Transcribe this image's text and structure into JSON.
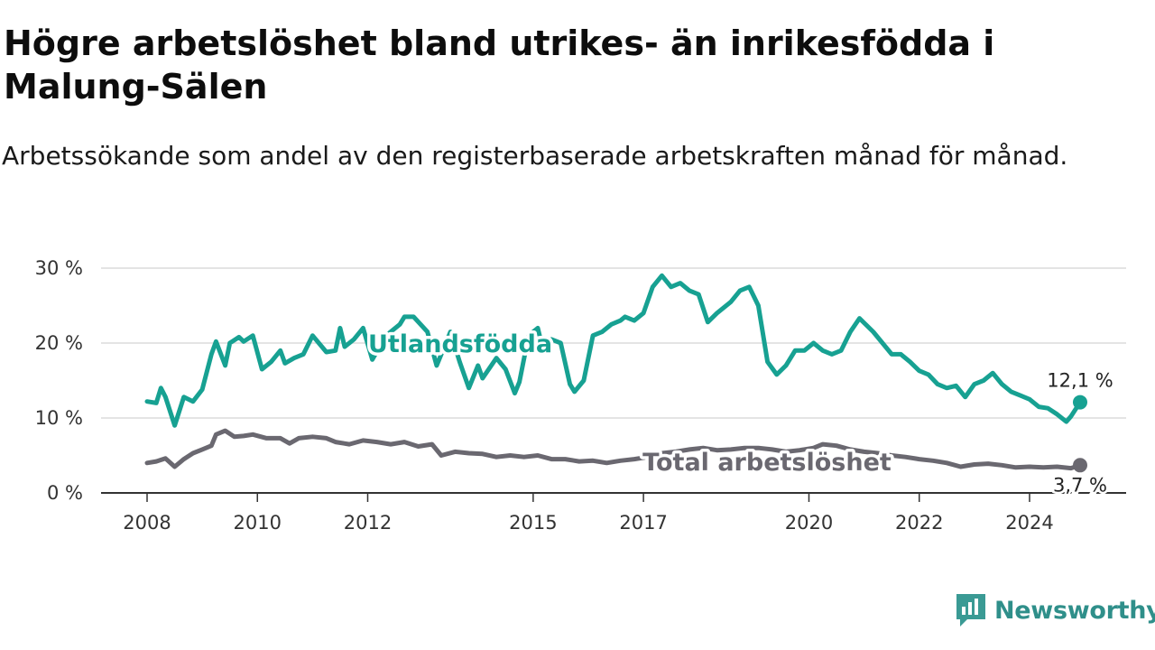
{
  "header": {
    "title": "Högre arbetslöshet bland utrikes- än inrikesfödda i Malung-Sälen",
    "subtitle": "Arbetssökande som andel av den registerbaserade arbetskraften månad för månad."
  },
  "brand": {
    "name": "Newsworthy",
    "icon": "newsworthy-logo-icon",
    "color": "#3a9a94"
  },
  "chart_data": {
    "type": "line",
    "title": "Högre arbetslöshet bland utrikes- än inrikesfödda i Malung-Sälen",
    "subtitle": "Arbetssökande som andel av den registerbaserade arbetskraften månad för månad.",
    "xlabel": "",
    "ylabel": "",
    "xlim": [
      "2008-01",
      "2024-12"
    ],
    "ylim": [
      0,
      30
    ],
    "y_ticks": [
      0,
      10,
      20,
      30
    ],
    "y_tick_labels": [
      "0 %",
      "10 %",
      "20 %",
      "30 %"
    ],
    "x_ticks": [
      "2008-01",
      "2010-01",
      "2012-01",
      "2015-01",
      "2017-01",
      "2020-01",
      "2022-01",
      "2024-01"
    ],
    "x_tick_labels": [
      "2008",
      "2010",
      "2012",
      "2015",
      "2017",
      "2020",
      "2022",
      "2024"
    ],
    "grid": true,
    "legend": "inline",
    "series": [
      {
        "name": "Utlandsfödda",
        "color": "#17a192",
        "end_label": "12,1 %",
        "points": [
          [
            "2008-01",
            12.2
          ],
          [
            "2008-03",
            12.0
          ],
          [
            "2008-04",
            14.0
          ],
          [
            "2008-05",
            12.8
          ],
          [
            "2008-07",
            9.0
          ],
          [
            "2008-09",
            12.8
          ],
          [
            "2008-11",
            12.2
          ],
          [
            "2009-01",
            13.8
          ],
          [
            "2009-03",
            18.5
          ],
          [
            "2009-04",
            20.2
          ],
          [
            "2009-06",
            17.0
          ],
          [
            "2009-07",
            20.0
          ],
          [
            "2009-09",
            20.8
          ],
          [
            "2009-10",
            20.2
          ],
          [
            "2009-12",
            21.0
          ],
          [
            "2010-02",
            16.5
          ],
          [
            "2010-04",
            17.5
          ],
          [
            "2010-06",
            19.0
          ],
          [
            "2010-07",
            17.3
          ],
          [
            "2010-09",
            18.0
          ],
          [
            "2010-11",
            18.5
          ],
          [
            "2011-01",
            21.0
          ],
          [
            "2011-04",
            18.8
          ],
          [
            "2011-06",
            19.0
          ],
          [
            "2011-07",
            22.0
          ],
          [
            "2011-08",
            19.5
          ],
          [
            "2011-10",
            20.5
          ],
          [
            "2011-12",
            22.0
          ],
          [
            "2012-02",
            17.8
          ],
          [
            "2012-05",
            21.0
          ],
          [
            "2012-08",
            22.5
          ],
          [
            "2012-09",
            23.5
          ],
          [
            "2012-11",
            23.5
          ],
          [
            "2013-02",
            21.5
          ],
          [
            "2013-04",
            17.0
          ],
          [
            "2013-07",
            21.5
          ],
          [
            "2013-09",
            17.5
          ],
          [
            "2013-11",
            14.0
          ],
          [
            "2014-01",
            17.0
          ],
          [
            "2014-02",
            15.3
          ],
          [
            "2014-05",
            18.0
          ],
          [
            "2014-07",
            16.5
          ],
          [
            "2014-09",
            13.3
          ],
          [
            "2014-10",
            14.8
          ],
          [
            "2014-12",
            21.0
          ],
          [
            "2015-02",
            22.0
          ],
          [
            "2015-03",
            19.5
          ],
          [
            "2015-05",
            20.5
          ],
          [
            "2015-07",
            20.0
          ],
          [
            "2015-09",
            14.5
          ],
          [
            "2015-10",
            13.5
          ],
          [
            "2015-12",
            15.0
          ],
          [
            "2016-02",
            21.0
          ],
          [
            "2016-04",
            21.5
          ],
          [
            "2016-06",
            22.5
          ],
          [
            "2016-08",
            23.0
          ],
          [
            "2016-09",
            23.5
          ],
          [
            "2016-11",
            23.0
          ],
          [
            "2017-01",
            24.0
          ],
          [
            "2017-03",
            27.5
          ],
          [
            "2017-05",
            29.0
          ],
          [
            "2017-07",
            27.5
          ],
          [
            "2017-09",
            28.0
          ],
          [
            "2017-11",
            27.0
          ],
          [
            "2018-01",
            26.5
          ],
          [
            "2018-03",
            22.8
          ],
          [
            "2018-05",
            24.0
          ],
          [
            "2018-08",
            25.5
          ],
          [
            "2018-10",
            27.0
          ],
          [
            "2018-12",
            27.5
          ],
          [
            "2019-02",
            25.0
          ],
          [
            "2019-04",
            17.5
          ],
          [
            "2019-06",
            15.8
          ],
          [
            "2019-08",
            17.0
          ],
          [
            "2019-10",
            19.0
          ],
          [
            "2019-12",
            19.0
          ],
          [
            "2020-02",
            20.0
          ],
          [
            "2020-04",
            19.0
          ],
          [
            "2020-06",
            18.5
          ],
          [
            "2020-08",
            19.0
          ],
          [
            "2020-10",
            21.5
          ],
          [
            "2020-12",
            23.3
          ],
          [
            "2021-03",
            21.5
          ],
          [
            "2021-05",
            20.0
          ],
          [
            "2021-07",
            18.5
          ],
          [
            "2021-09",
            18.5
          ],
          [
            "2021-11",
            17.5
          ],
          [
            "2022-01",
            16.3
          ],
          [
            "2022-03",
            15.8
          ],
          [
            "2022-05",
            14.5
          ],
          [
            "2022-07",
            14.0
          ],
          [
            "2022-09",
            14.3
          ],
          [
            "2022-11",
            12.8
          ],
          [
            "2023-01",
            14.5
          ],
          [
            "2023-03",
            15.0
          ],
          [
            "2023-05",
            16.0
          ],
          [
            "2023-07",
            14.5
          ],
          [
            "2023-09",
            13.5
          ],
          [
            "2023-11",
            13.0
          ],
          [
            "2024-01",
            12.5
          ],
          [
            "2024-03",
            11.5
          ],
          [
            "2024-05",
            11.3
          ],
          [
            "2024-07",
            10.5
          ],
          [
            "2024-09",
            9.5
          ],
          [
            "2024-10",
            10.2
          ],
          [
            "2024-12",
            12.1
          ]
        ]
      },
      {
        "name": "Total arbetslöshet",
        "color": "#6a6870",
        "end_label": "3,7 %",
        "points": [
          [
            "2008-01",
            4.0
          ],
          [
            "2008-03",
            4.2
          ],
          [
            "2008-05",
            4.6
          ],
          [
            "2008-07",
            3.5
          ],
          [
            "2008-09",
            4.5
          ],
          [
            "2008-11",
            5.3
          ],
          [
            "2009-01",
            5.8
          ],
          [
            "2009-03",
            6.3
          ],
          [
            "2009-04",
            7.8
          ],
          [
            "2009-06",
            8.3
          ],
          [
            "2009-08",
            7.5
          ],
          [
            "2009-10",
            7.6
          ],
          [
            "2009-12",
            7.8
          ],
          [
            "2010-03",
            7.3
          ],
          [
            "2010-06",
            7.3
          ],
          [
            "2010-08",
            6.6
          ],
          [
            "2010-10",
            7.3
          ],
          [
            "2011-01",
            7.5
          ],
          [
            "2011-04",
            7.3
          ],
          [
            "2011-06",
            6.8
          ],
          [
            "2011-09",
            6.5
          ],
          [
            "2011-12",
            7.0
          ],
          [
            "2012-03",
            6.8
          ],
          [
            "2012-06",
            6.5
          ],
          [
            "2012-09",
            6.8
          ],
          [
            "2012-12",
            6.2
          ],
          [
            "2013-03",
            6.5
          ],
          [
            "2013-05",
            5.0
          ],
          [
            "2013-08",
            5.5
          ],
          [
            "2013-11",
            5.3
          ],
          [
            "2014-02",
            5.2
          ],
          [
            "2014-05",
            4.8
          ],
          [
            "2014-08",
            5.0
          ],
          [
            "2014-11",
            4.8
          ],
          [
            "2015-02",
            5.0
          ],
          [
            "2015-05",
            4.5
          ],
          [
            "2015-08",
            4.5
          ],
          [
            "2015-11",
            4.2
          ],
          [
            "2016-02",
            4.3
          ],
          [
            "2016-05",
            4.0
          ],
          [
            "2016-08",
            4.3
          ],
          [
            "2016-11",
            4.5
          ],
          [
            "2017-02",
            4.8
          ],
          [
            "2017-05",
            5.3
          ],
          [
            "2017-08",
            5.5
          ],
          [
            "2017-11",
            5.8
          ],
          [
            "2018-02",
            6.0
          ],
          [
            "2018-05",
            5.7
          ],
          [
            "2018-08",
            5.8
          ],
          [
            "2018-11",
            6.0
          ],
          [
            "2019-02",
            6.0
          ],
          [
            "2019-05",
            5.8
          ],
          [
            "2019-08",
            5.5
          ],
          [
            "2019-11",
            5.7
          ],
          [
            "2020-02",
            6.0
          ],
          [
            "2020-04",
            6.5
          ],
          [
            "2020-07",
            6.3
          ],
          [
            "2020-10",
            5.8
          ],
          [
            "2021-01",
            5.5
          ],
          [
            "2021-04",
            5.3
          ],
          [
            "2021-07",
            5.0
          ],
          [
            "2021-10",
            4.8
          ],
          [
            "2022-01",
            4.5
          ],
          [
            "2022-04",
            4.3
          ],
          [
            "2022-07",
            4.0
          ],
          [
            "2022-10",
            3.5
          ],
          [
            "2023-01",
            3.8
          ],
          [
            "2023-04",
            3.9
          ],
          [
            "2023-07",
            3.7
          ],
          [
            "2023-10",
            3.4
          ],
          [
            "2024-01",
            3.5
          ],
          [
            "2024-04",
            3.4
          ],
          [
            "2024-07",
            3.5
          ],
          [
            "2024-10",
            3.3
          ],
          [
            "2024-12",
            3.7
          ]
        ]
      }
    ]
  }
}
